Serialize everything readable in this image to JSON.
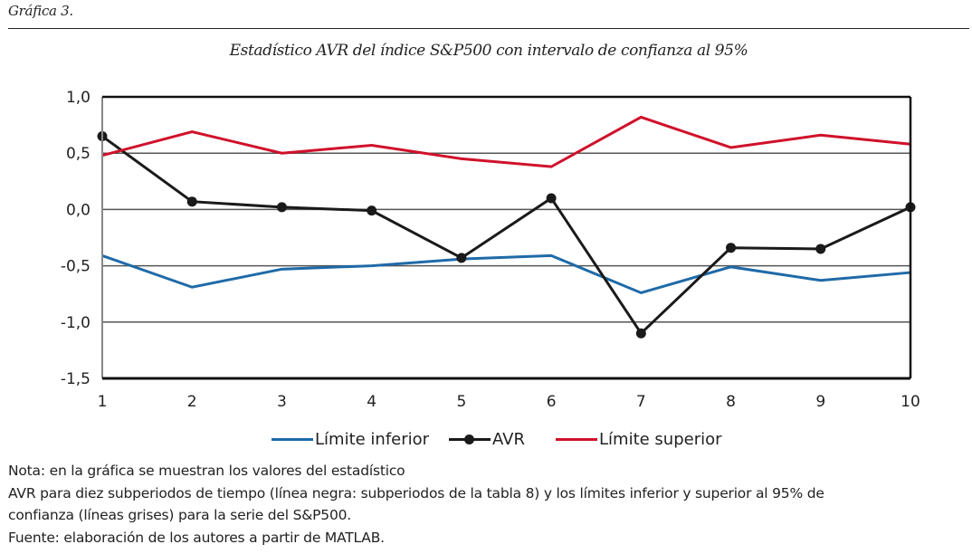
{
  "figure_label": "Gráfica 3.",
  "chart_data": {
    "type": "line",
    "title": "Estadístico AVR del índice S&P500 con intervalo de confianza al 95%",
    "xlabel": "",
    "ylabel": "",
    "x": [
      1,
      2,
      3,
      4,
      5,
      6,
      7,
      8,
      9,
      10
    ],
    "x_tick_labels": [
      "1",
      "2",
      "3",
      "4",
      "5",
      "6",
      "7",
      "8",
      "9",
      "10"
    ],
    "ylim": [
      -1.5,
      1.0
    ],
    "y_ticks": [
      1.0,
      0.5,
      0.0,
      -0.5,
      -1.0,
      -1.5
    ],
    "y_tick_labels": [
      "1,0",
      "0,5",
      "0,0",
      "-0,5",
      "-1,0",
      "-1,5"
    ],
    "grid": "horizontal",
    "legend_position": "bottom",
    "series": [
      {
        "name": "Límite inferior",
        "color": "#1f6aa8",
        "markers": false,
        "values": [
          -0.41,
          -0.69,
          -0.53,
          -0.5,
          -0.44,
          -0.41,
          -0.74,
          -0.51,
          -0.63,
          -0.56
        ]
      },
      {
        "name": "AVR",
        "color": "#1a1a1a",
        "markers": true,
        "values": [
          0.65,
          0.07,
          0.02,
          -0.01,
          -0.43,
          0.1,
          -1.1,
          -0.34,
          -0.35,
          0.02
        ]
      },
      {
        "name": "Límite superior",
        "color": "#d0112b",
        "markers": false,
        "values": [
          0.48,
          0.69,
          0.5,
          0.57,
          0.45,
          0.38,
          0.82,
          0.55,
          0.66,
          0.58
        ]
      }
    ]
  },
  "notes": {
    "line1": "Nota: en la gráfica se muestran los valores del estadístico",
    "line2": "AVR para diez subperiodos de tiempo (línea negra: subperiodos de la tabla 8) y los límites inferior y superior al 95% de",
    "line3": "confianza (líneas grises) para la serie del S&P500.",
    "line4": "Fuente: elaboración de los autores a partir de MATLAB."
  }
}
